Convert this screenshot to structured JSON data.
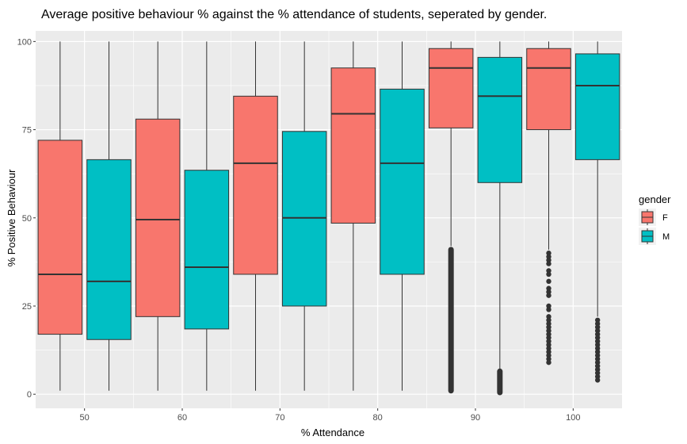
{
  "chart_data": {
    "type": "boxplot",
    "title": "Average positive behaviour % against the % attendance of students, seperated by gender.",
    "xlabel": "% Attendance",
    "ylabel": "% Positive Behaviour",
    "xlim": [
      45,
      105
    ],
    "ylim": [
      -4,
      103
    ],
    "x_ticks": [
      50,
      60,
      70,
      80,
      90,
      100
    ],
    "y_ticks": [
      0,
      25,
      50,
      75,
      100
    ],
    "grid": true,
    "legend": {
      "title": "gender",
      "position": "right"
    },
    "series": [
      {
        "name": "F",
        "color": "#F8766D",
        "boxes": [
          {
            "x": 47.5,
            "min": 1,
            "q1": 17,
            "median": 34,
            "q3": 72,
            "max": 100,
            "outliers": []
          },
          {
            "x": 57.5,
            "min": 1,
            "q1": 22,
            "median": 49.5,
            "q3": 78,
            "max": 100,
            "outliers": []
          },
          {
            "x": 67.5,
            "min": 1,
            "q1": 34,
            "median": 65.5,
            "q3": 84.5,
            "max": 100,
            "outliers": []
          },
          {
            "x": 77.5,
            "min": 1,
            "q1": 48.5,
            "median": 79.5,
            "q3": 92.5,
            "max": 100,
            "outliers": []
          },
          {
            "x": 87.5,
            "min": 42,
            "q1": 75.5,
            "median": 92.5,
            "q3": 98,
            "max": 100,
            "outliers_range": [
              1,
              41
            ]
          },
          {
            "x": 97.5,
            "min": 41,
            "q1": 75,
            "median": 92.5,
            "q3": 98,
            "max": 100,
            "outliers": [
              40,
              39,
              38,
              37,
              35,
              34,
              32,
              30,
              29,
              28,
              25,
              24,
              22,
              21,
              20,
              19,
              18,
              17,
              16,
              15,
              14,
              13,
              12,
              11,
              10,
              9
            ]
          }
        ]
      },
      {
        "name": "M",
        "color": "#00BFC4",
        "boxes": [
          {
            "x": 52.5,
            "min": 1,
            "q1": 15.5,
            "median": 32,
            "q3": 66.5,
            "max": 100,
            "outliers": []
          },
          {
            "x": 62.5,
            "min": 1,
            "q1": 18.5,
            "median": 36,
            "q3": 63.5,
            "max": 100,
            "outliers": []
          },
          {
            "x": 72.5,
            "min": 1,
            "q1": 25,
            "median": 50,
            "q3": 74.5,
            "max": 100,
            "outliers": []
          },
          {
            "x": 82.5,
            "min": 1,
            "q1": 34,
            "median": 65.5,
            "q3": 86.5,
            "max": 100,
            "outliers": []
          },
          {
            "x": 92.5,
            "min": 7,
            "q1": 60,
            "median": 84.5,
            "q3": 95.5,
            "max": 100,
            "outliers_range": [
              0.5,
              6.5
            ]
          },
          {
            "x": 102.5,
            "min": 22,
            "q1": 66.5,
            "median": 87.5,
            "q3": 96.5,
            "max": 100,
            "outliers": [
              21,
              20,
              19,
              18,
              17,
              16,
              15,
              14,
              13,
              12,
              11,
              10,
              9,
              8,
              7,
              6,
              5,
              4
            ]
          }
        ]
      }
    ]
  }
}
